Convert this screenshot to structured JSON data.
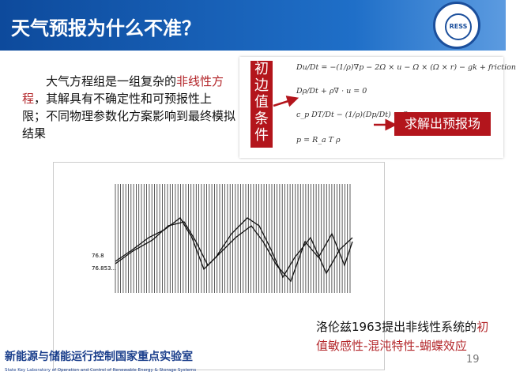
{
  "header": {
    "title": "天气预报为什么不准？",
    "logo_text": "RESS"
  },
  "intro": {
    "text_a": "大气方程组是一组复杂的",
    "text_red": "非线性方程",
    "text_b": "，其解具有不确定性和可预报性上限；不同物理参数化方案影响到最终模拟结果"
  },
  "equations": {
    "label": "初边值条件",
    "eq1": "Du/Dt = −(1/ρ)∇p − 2Ω × u − Ω × (Ω × r) − gk + friction",
    "eq2": "Dρ/Dt + ρ∇ · u = 0",
    "eq3": "c_p DT/Dt − (1/ρ)(Dp/Dt) = Q",
    "eq4": "p = R_a T ρ",
    "result": "求解出预报场"
  },
  "figure": {
    "label1": "76.8",
    "label2": "76.853..."
  },
  "caption": {
    "text_a": "洛伦兹1963提出非线性系统的",
    "text_red": "初值敏感性-混沌特性-蝴蝶效应"
  },
  "footer": {
    "page": "19",
    "lab_cn": "新能源与储能运行控制国家重点实验室",
    "lab_en": "State Key Laboratory of Operation and Control of Renewable Energy & Storage Systems"
  },
  "colors": {
    "header": "#1f6fc8",
    "accent_red": "#b3151c"
  }
}
